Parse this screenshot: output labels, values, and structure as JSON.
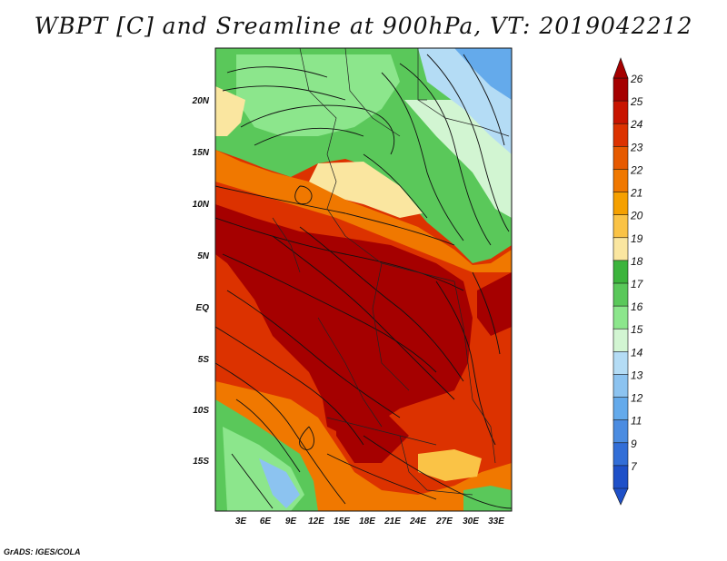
{
  "title": "WBPT [C] and Sreamline at 900hPa, VT: 2019042212",
  "footer": "GrADS: IGES/COLA",
  "lat_labels": [
    "20N",
    "15N",
    "10N",
    "5N",
    "EQ",
    "5S",
    "10S",
    "15S"
  ],
  "lon_labels": [
    "3E",
    "6E",
    "9E",
    "12E",
    "15E",
    "18E",
    "21E",
    "24E",
    "27E",
    "30E",
    "33E"
  ],
  "colorbar": {
    "labels": [
      "26",
      "25",
      "24",
      "23",
      "22",
      "21",
      "20",
      "19",
      "18",
      "17",
      "16",
      "15",
      "14",
      "13",
      "12",
      "11",
      "9",
      "7"
    ],
    "colors": [
      "#a50000",
      "#c81400",
      "#dc3200",
      "#e65a00",
      "#f07800",
      "#f5a000",
      "#fac346",
      "#fae6a0",
      "#3cb43c",
      "#5ac85a",
      "#8ce68c",
      "#d2f5d2",
      "#b4dcf5",
      "#8cc3f0",
      "#64aaeb",
      "#4b8ce1",
      "#326ed7",
      "#1e50c8"
    ]
  },
  "colors": {
    "hot_core": "#a50000",
    "warm": "#dc3200",
    "orange": "#f07800",
    "yellow": "#fae6a0",
    "green": "#5ac85a",
    "light_green": "#8ce68c",
    "blue": "#64aaeb"
  }
}
